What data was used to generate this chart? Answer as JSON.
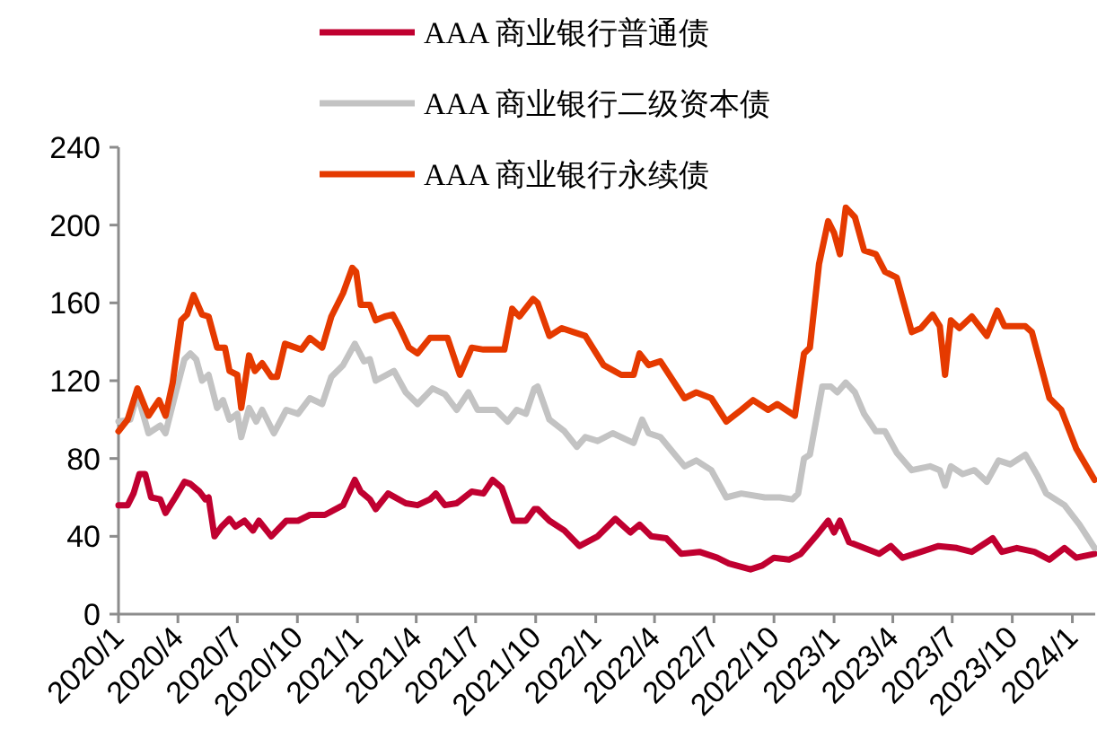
{
  "chart_data": {
    "type": "line",
    "legend": "top",
    "line_style": "solid",
    "xlim": [
      "2020-01-01",
      "2024-02-05"
    ],
    "ylim": [
      0,
      240
    ],
    "yticks": [
      0,
      40,
      80,
      120,
      160,
      200,
      240
    ],
    "xticks": [
      {
        "value": "2020-01-01",
        "label": "2020/1"
      },
      {
        "value": "2020-04-01",
        "label": "2020/4"
      },
      {
        "value": "2020-07-01",
        "label": "2020/7"
      },
      {
        "value": "2020-10-01",
        "label": "2020/10"
      },
      {
        "value": "2021-01-01",
        "label": "2021/1"
      },
      {
        "value": "2021-04-01",
        "label": "2021/4"
      },
      {
        "value": "2021-07-01",
        "label": "2021/7"
      },
      {
        "value": "2021-10-01",
        "label": "2021/10"
      },
      {
        "value": "2022-01-01",
        "label": "2022/1"
      },
      {
        "value": "2022-04-01",
        "label": "2022/4"
      },
      {
        "value": "2022-07-01",
        "label": "2022/7"
      },
      {
        "value": "2022-10-01",
        "label": "2022/10"
      },
      {
        "value": "2023-01-01",
        "label": "2023/1"
      },
      {
        "value": "2023-04-01",
        "label": "2023/4"
      },
      {
        "value": "2023-07-01",
        "label": "2023/7"
      },
      {
        "value": "2023-10-01",
        "label": "2023/10"
      },
      {
        "value": "2024-01-01",
        "label": "2024/1"
      }
    ],
    "series": [
      {
        "name": "AAA 商业银行普通债",
        "color": "#c00030",
        "x": [
          "2020-01-01",
          "2020-01-15",
          "2020-01-24",
          "2020-02-02",
          "2020-02-11",
          "2020-02-20",
          "2020-03-05",
          "2020-03-13",
          "2020-03-28",
          "2020-04-11",
          "2020-04-20",
          "2020-05-04",
          "2020-05-13",
          "2020-05-18",
          "2020-05-27",
          "2020-06-07",
          "2020-06-19",
          "2020-06-28",
          "2020-07-12",
          "2020-07-25",
          "2020-08-03",
          "2020-08-22",
          "2020-09-14",
          "2020-10-02",
          "2020-10-20",
          "2020-11-12",
          "2020-12-10",
          "2020-12-28",
          "2021-01-06",
          "2021-01-20",
          "2021-01-29",
          "2021-02-17",
          "2021-03-16",
          "2021-04-03",
          "2021-04-22",
          "2021-05-01",
          "2021-05-15",
          "2021-06-02",
          "2021-06-25",
          "2021-07-13",
          "2021-07-27",
          "2021-08-10",
          "2021-08-28",
          "2021-09-16",
          "2021-09-29",
          "2021-10-04",
          "2021-10-22",
          "2021-11-14",
          "2021-12-07",
          "2022-01-04",
          "2022-01-31",
          "2022-02-23",
          "2022-03-09",
          "2022-03-27",
          "2022-04-19",
          "2022-05-12",
          "2022-06-09",
          "2022-07-06",
          "2022-07-24",
          "2022-08-26",
          "2022-09-13",
          "2022-10-01",
          "2022-10-24",
          "2022-11-11",
          "2022-12-04",
          "2022-12-23",
          "2023-01-01",
          "2023-01-10",
          "2023-01-24",
          "2023-02-16",
          "2023-03-11",
          "2023-03-29",
          "2023-04-16",
          "2023-05-14",
          "2023-06-10",
          "2023-07-08",
          "2023-07-31",
          "2023-09-01",
          "2023-09-15",
          "2023-10-08",
          "2023-11-04",
          "2023-11-27",
          "2023-12-20",
          "2024-01-07",
          "2024-02-04"
        ],
        "values": [
          56,
          56,
          62,
          72,
          72,
          60,
          59,
          52,
          60,
          68,
          67,
          63,
          59,
          60,
          40,
          45,
          49,
          45,
          48,
          43,
          48,
          40,
          48,
          48,
          51,
          51,
          56,
          69,
          63,
          59,
          54,
          62,
          57,
          56,
          59,
          62,
          56,
          57,
          63,
          62,
          69,
          65,
          48,
          48,
          54,
          54,
          48,
          43,
          35,
          40,
          49,
          42,
          46,
          40,
          39,
          31,
          32,
          29,
          26,
          23,
          25,
          29,
          28,
          31,
          40,
          48,
          42,
          48,
          37,
          34,
          31,
          35,
          29,
          32,
          35,
          34,
          32,
          39,
          32,
          34,
          32,
          28,
          34,
          29,
          31
        ]
      },
      {
        "name": "AAA 商业银行二级资本债",
        "color": "#c3c3c3",
        "x": [
          "2020-01-01",
          "2020-01-19",
          "2020-01-30",
          "2020-02-16",
          "2020-03-05",
          "2020-03-13",
          "2020-03-28",
          "2020-04-11",
          "2020-04-20",
          "2020-04-29",
          "2020-05-08",
          "2020-05-18",
          "2020-05-31",
          "2020-06-09",
          "2020-06-19",
          "2020-07-01",
          "2020-07-07",
          "2020-07-19",
          "2020-07-30",
          "2020-08-08",
          "2020-08-26",
          "2020-09-14",
          "2020-10-02",
          "2020-10-20",
          "2020-11-08",
          "2020-11-22",
          "2020-12-10",
          "2020-12-28",
          "2021-01-11",
          "2021-01-20",
          "2021-01-29",
          "2021-02-26",
          "2021-03-16",
          "2021-04-03",
          "2021-04-26",
          "2021-05-15",
          "2021-06-02",
          "2021-06-20",
          "2021-07-04",
          "2021-08-01",
          "2021-08-19",
          "2021-09-02",
          "2021-09-16",
          "2021-09-29",
          "2021-10-04",
          "2021-10-22",
          "2021-11-14",
          "2021-12-03",
          "2021-12-16",
          "2022-01-04",
          "2022-01-27",
          "2022-02-28",
          "2022-03-13",
          "2022-03-23",
          "2022-04-10",
          "2022-05-17",
          "2022-06-04",
          "2022-06-27",
          "2022-07-20",
          "2022-08-12",
          "2022-09-17",
          "2022-10-10",
          "2022-10-29",
          "2022-11-07",
          "2022-11-16",
          "2022-11-25",
          "2022-12-14",
          "2022-12-27",
          "2023-01-06",
          "2023-01-19",
          "2023-02-02",
          "2023-02-16",
          "2023-03-06",
          "2023-03-20",
          "2023-04-07",
          "2023-04-30",
          "2023-05-28",
          "2023-06-12",
          "2023-06-20",
          "2023-06-29",
          "2023-07-17",
          "2023-08-04",
          "2023-08-23",
          "2023-09-10",
          "2023-09-28",
          "2023-10-21",
          "2023-11-09",
          "2023-11-22",
          "2023-12-20",
          "2024-01-12",
          "2024-02-04"
        ],
        "values": [
          99,
          100,
          113,
          93,
          97,
          93,
          113,
          131,
          134,
          131,
          120,
          123,
          106,
          110,
          100,
          103,
          91,
          106,
          99,
          105,
          93,
          105,
          103,
          111,
          108,
          122,
          128,
          139,
          130,
          131,
          120,
          125,
          114,
          108,
          116,
          113,
          105,
          114,
          105,
          105,
          99,
          105,
          103,
          116,
          117,
          100,
          94,
          86,
          91,
          89,
          93,
          88,
          100,
          93,
          91,
          76,
          79,
          74,
          60,
          62,
          60,
          60,
          59,
          62,
          80,
          82,
          117,
          117,
          114,
          119,
          114,
          103,
          94,
          94,
          83,
          74,
          76,
          74,
          66,
          76,
          72,
          74,
          68,
          79,
          77,
          82,
          71,
          62,
          56,
          46,
          34
        ]
      },
      {
        "name": "AAA 商业银行永续债",
        "color": "#e53a00",
        "x": [
          "2020-01-01",
          "2020-01-15",
          "2020-01-30",
          "2020-02-16",
          "2020-03-03",
          "2020-03-13",
          "2020-03-24",
          "2020-04-06",
          "2020-04-15",
          "2020-04-25",
          "2020-05-08",
          "2020-05-18",
          "2020-05-31",
          "2020-06-12",
          "2020-06-19",
          "2020-07-01",
          "2020-07-07",
          "2020-07-19",
          "2020-07-28",
          "2020-08-08",
          "2020-08-22",
          "2020-08-31",
          "2020-09-12",
          "2020-10-07",
          "2020-10-20",
          "2020-11-08",
          "2020-11-22",
          "2020-12-10",
          "2020-12-24",
          "2020-12-30",
          "2021-01-06",
          "2021-01-20",
          "2021-01-29",
          "2021-02-12",
          "2021-02-24",
          "2021-03-07",
          "2021-03-21",
          "2021-04-03",
          "2021-04-22",
          "2021-05-19",
          "2021-06-07",
          "2021-06-25",
          "2021-07-13",
          "2021-08-14",
          "2021-08-26",
          "2021-09-06",
          "2021-09-27",
          "2021-10-04",
          "2021-10-22",
          "2021-11-10",
          "2021-11-28",
          "2021-12-16",
          "2022-01-13",
          "2022-02-09",
          "2022-02-28",
          "2022-03-09",
          "2022-03-23",
          "2022-04-10",
          "2022-05-17",
          "2022-06-04",
          "2022-06-27",
          "2022-07-20",
          "2022-08-12",
          "2022-08-30",
          "2022-09-22",
          "2022-10-06",
          "2022-11-02",
          "2022-11-16",
          "2022-11-25",
          "2022-12-09",
          "2022-12-23",
          "2023-01-01",
          "2023-01-10",
          "2023-01-19",
          "2023-02-02",
          "2023-02-16",
          "2023-03-06",
          "2023-03-20",
          "2023-04-07",
          "2023-04-30",
          "2023-05-14",
          "2023-06-01",
          "2023-06-12",
          "2023-06-20",
          "2023-06-29",
          "2023-07-12",
          "2023-07-31",
          "2023-08-23",
          "2023-09-08",
          "2023-09-19",
          "2023-10-21",
          "2023-10-31",
          "2023-11-27",
          "2023-12-15",
          "2024-01-07",
          "2024-02-04"
        ],
        "values": [
          94,
          100,
          116,
          102,
          110,
          102,
          119,
          151,
          154,
          164,
          154,
          153,
          137,
          137,
          125,
          123,
          106,
          133,
          125,
          129,
          122,
          122,
          139,
          136,
          142,
          137,
          153,
          165,
          178,
          176,
          159,
          159,
          151,
          153,
          154,
          147,
          137,
          134,
          142,
          142,
          123,
          137,
          136,
          136,
          157,
          153,
          162,
          160,
          143,
          147,
          145,
          143,
          128,
          123,
          123,
          134,
          128,
          130,
          111,
          114,
          111,
          99,
          105,
          110,
          105,
          108,
          102,
          134,
          137,
          180,
          202,
          196,
          185,
          209,
          204,
          187,
          185,
          176,
          173,
          145,
          147,
          154,
          148,
          123,
          151,
          147,
          153,
          143,
          156,
          148,
          148,
          145,
          111,
          105,
          85,
          69
        ]
      }
    ]
  }
}
